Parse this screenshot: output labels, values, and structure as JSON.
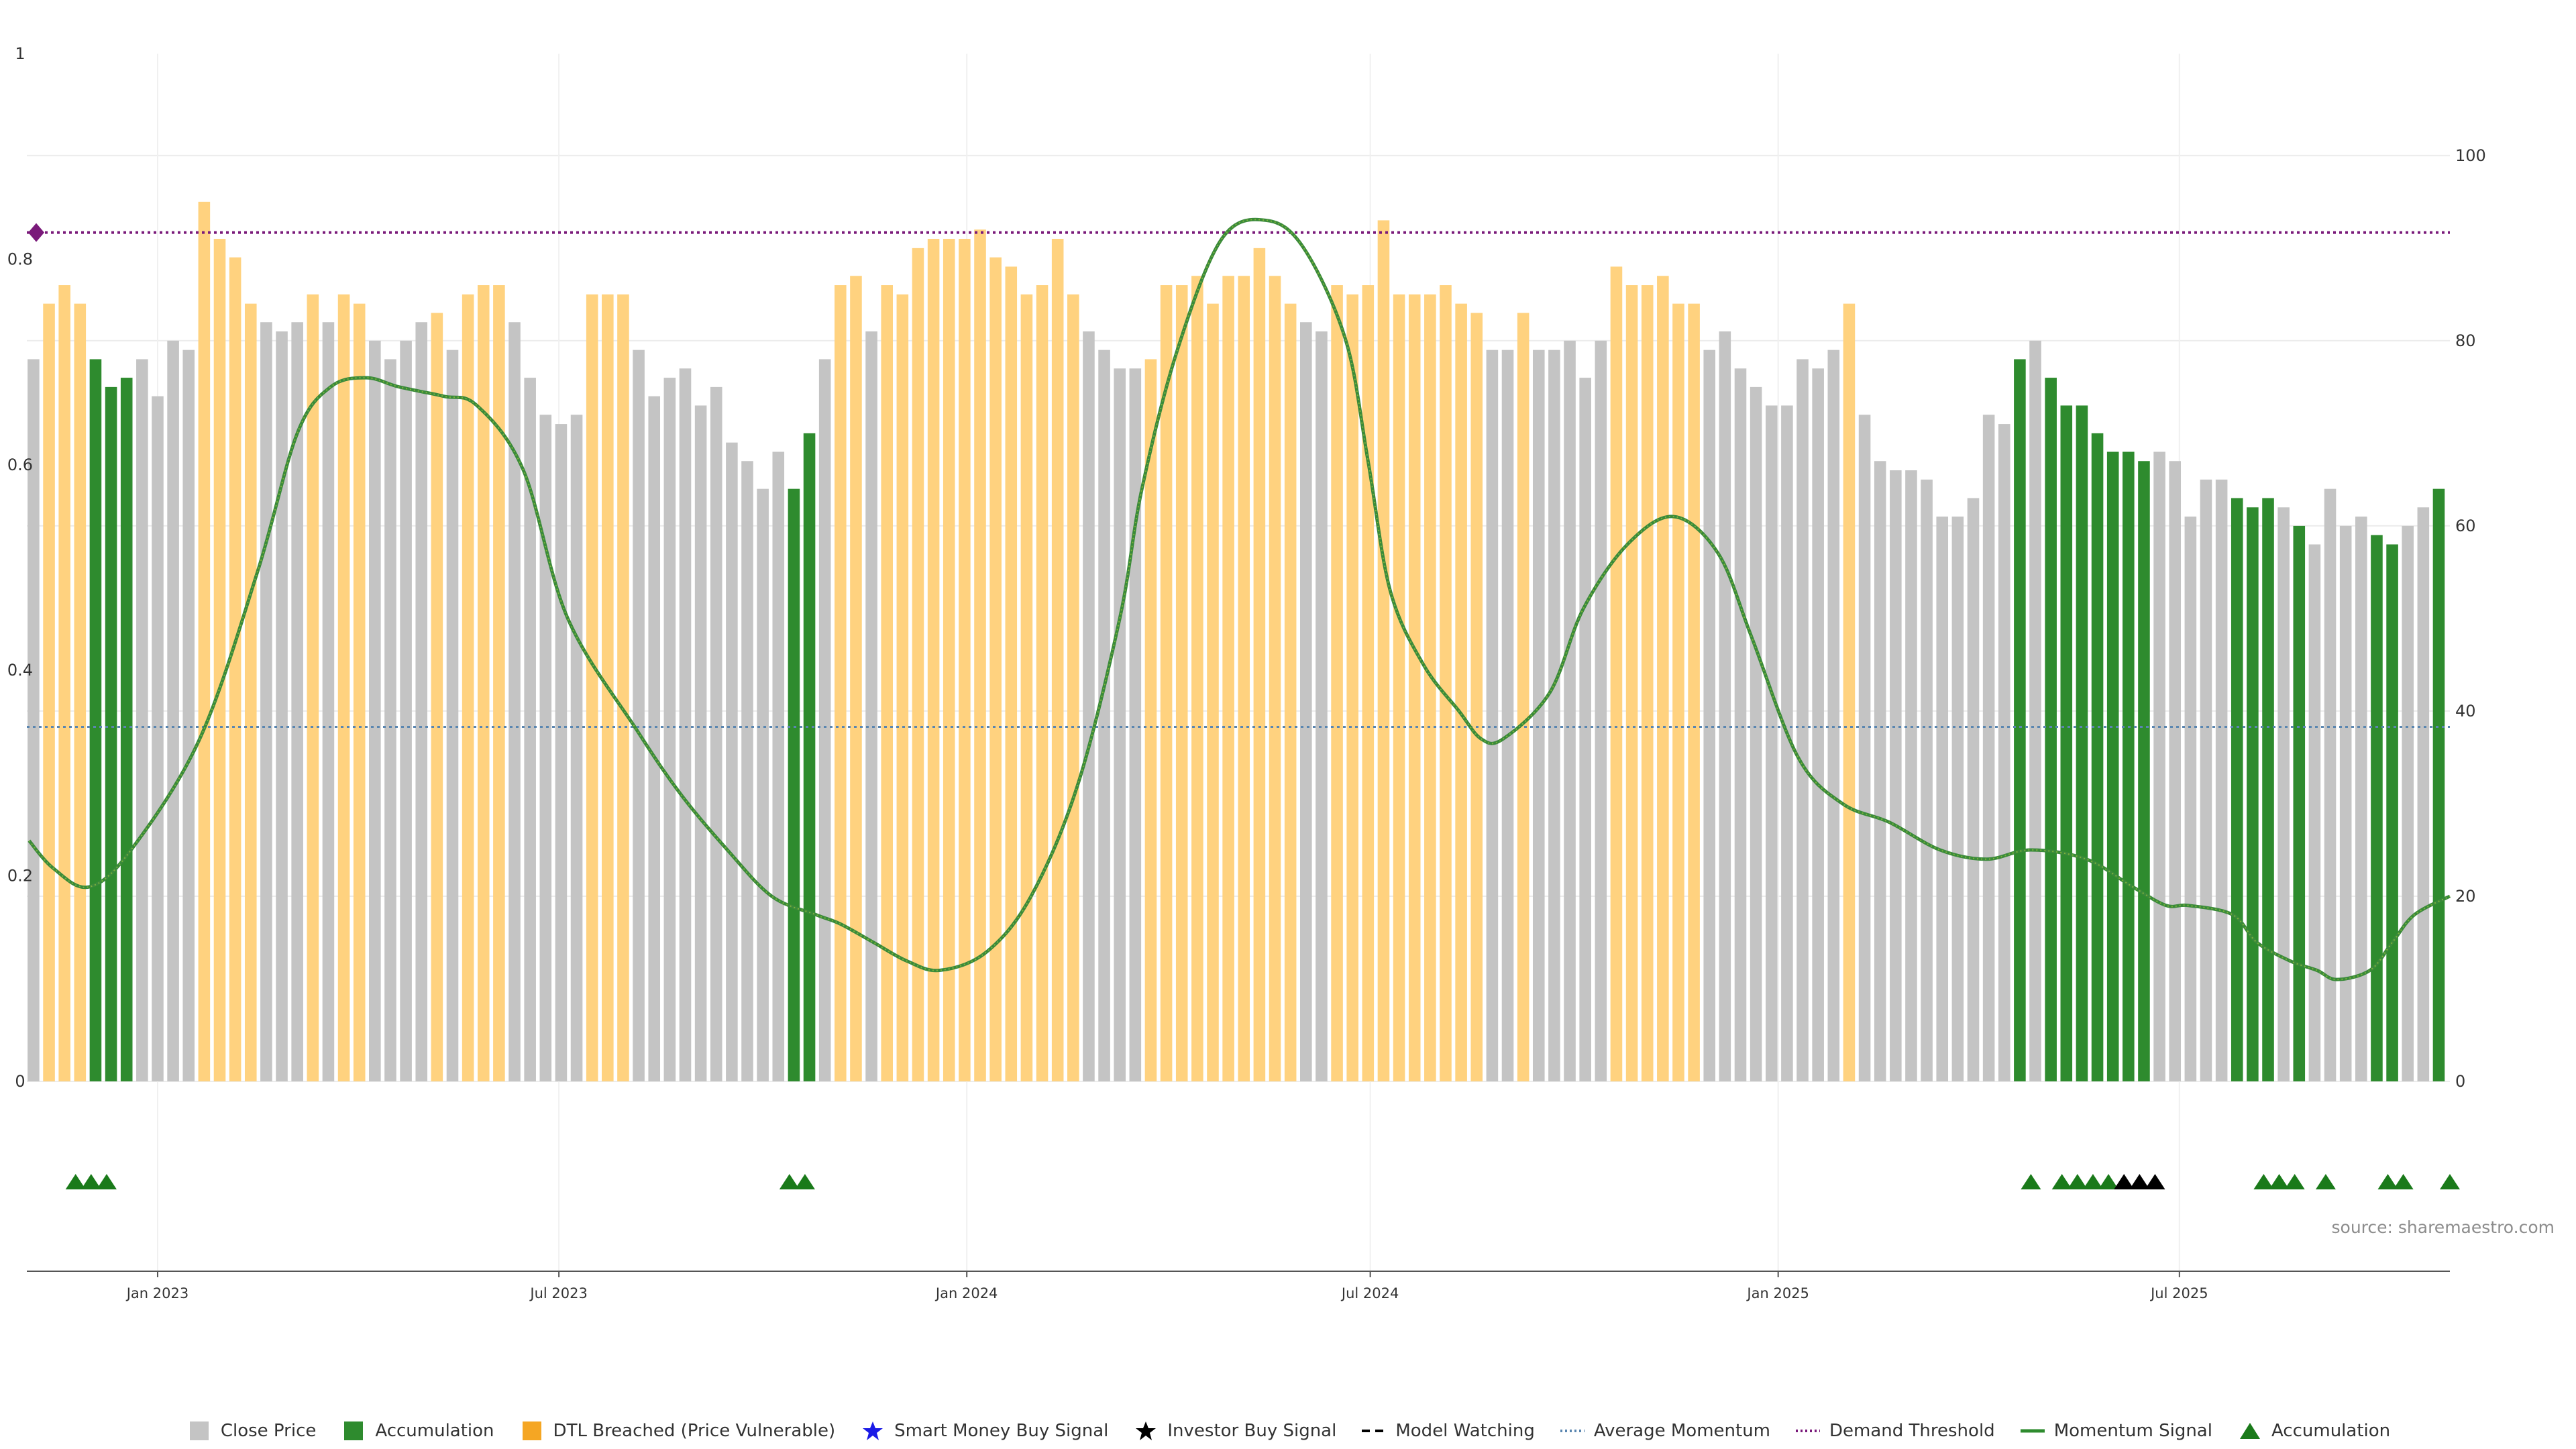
{
  "chart_data": {
    "type": "bar",
    "title": "",
    "xlabel": "",
    "ylabel": "",
    "left_axis": {
      "ylim": [
        0,
        1
      ],
      "ticks": [
        "0",
        "0.2",
        "0.4",
        "0.6",
        "0.8",
        "1"
      ]
    },
    "right_axis": {
      "ylim": [
        0,
        111
      ],
      "ticks": [
        "0",
        "20",
        "40",
        "60",
        "80",
        "100"
      ]
    },
    "x_ticks": [
      "Jan 2023",
      "Jul 2023",
      "Jan 2024",
      "Jul 2024",
      "Jan 2025",
      "Jul 2025"
    ],
    "x_tick_dates": [
      "2023-01-01",
      "2023-07-01",
      "2024-01-01",
      "2024-07-01",
      "2025-01-01",
      "2025-07-01"
    ],
    "x_range": [
      "2022-11-03",
      "2025-10-31"
    ],
    "grid": true,
    "legend_position": "bottom-center",
    "colors": {
      "close": "#c4c4c4",
      "accumulation": "#2e8b2e",
      "dtl": "#ffd27f",
      "momentum": "#3a8a3a",
      "demand_threshold": "#7a1a7a",
      "average_momentum": "#5a86b0",
      "marker_green": "#1a7a1a",
      "marker_black": "#000000",
      "smart_money": "#1a1ae6"
    },
    "demand_threshold": 0.826,
    "average_momentum": 0.345,
    "demand_threshold_marker": "diamond",
    "bar_series": {
      "start_date": "2022-11-06",
      "interval_days": 7,
      "categories": [
        "close",
        "accumulation",
        "dtl"
      ],
      "values": [
        78,
        84,
        86,
        84,
        78,
        75,
        76,
        78,
        74,
        80,
        79,
        95,
        91,
        89,
        84,
        82,
        81,
        82,
        85,
        82,
        85,
        84,
        80,
        78,
        80,
        82,
        83,
        79,
        85,
        86,
        86,
        82,
        76,
        72,
        71,
        72,
        85,
        85,
        85,
        79,
        74,
        76,
        77,
        73,
        75,
        69,
        67,
        64,
        68,
        64,
        70,
        78,
        86,
        87,
        81,
        86,
        85,
        90,
        91,
        91,
        91,
        92,
        89,
        88,
        85,
        86,
        91,
        85,
        81,
        79,
        77,
        77,
        78,
        86,
        86,
        87,
        84,
        87,
        87,
        90,
        87,
        84,
        82,
        81,
        86,
        85,
        86,
        93,
        85,
        85,
        85,
        86,
        84,
        83,
        79,
        79,
        83,
        79,
        79,
        80,
        76,
        80,
        88,
        86,
        86,
        87,
        84,
        84,
        79,
        81,
        77,
        75,
        73,
        73,
        78,
        77,
        79,
        84,
        72,
        67,
        66,
        66,
        65,
        61,
        61,
        63,
        72,
        71,
        78,
        80,
        76,
        73,
        73,
        70,
        68,
        68,
        67,
        68,
        67,
        61,
        65,
        65,
        63,
        62,
        63,
        62,
        60,
        58,
        64,
        60,
        61,
        59,
        58,
        60,
        62,
        64
      ],
      "kinds": [
        "close",
        "dtl",
        "dtl",
        "dtl",
        "acc",
        "acc",
        "acc",
        "close",
        "close",
        "close",
        "close",
        "dtl",
        "dtl",
        "dtl",
        "dtl",
        "close",
        "close",
        "close",
        "dtl",
        "close",
        "dtl",
        "dtl",
        "close",
        "close",
        "close",
        "close",
        "dtl",
        "close",
        "dtl",
        "dtl",
        "dtl",
        "close",
        "close",
        "close",
        "close",
        "close",
        "dtl",
        "dtl",
        "dtl",
        "close",
        "close",
        "close",
        "close",
        "close",
        "close",
        "close",
        "close",
        "close",
        "close",
        "acc",
        "acc",
        "close",
        "dtl",
        "dtl",
        "close",
        "dtl",
        "dtl",
        "dtl",
        "dtl",
        "dtl",
        "dtl",
        "dtl",
        "dtl",
        "dtl",
        "dtl",
        "dtl",
        "dtl",
        "dtl",
        "close",
        "close",
        "close",
        "close",
        "dtl",
        "dtl",
        "dtl",
        "dtl",
        "dtl",
        "dtl",
        "dtl",
        "dtl",
        "dtl",
        "dtl",
        "close",
        "close",
        "dtl",
        "dtl",
        "dtl",
        "dtl",
        "dtl",
        "dtl",
        "dtl",
        "dtl",
        "dtl",
        "dtl",
        "close",
        "close",
        "dtl",
        "close",
        "close",
        "close",
        "close",
        "close",
        "dtl",
        "dtl",
        "dtl",
        "dtl",
        "dtl",
        "dtl",
        "close",
        "close",
        "close",
        "close",
        "close",
        "close",
        "close",
        "close",
        "close",
        "dtl",
        "close",
        "close",
        "close",
        "close",
        "close",
        "close",
        "close",
        "close",
        "close",
        "close",
        "acc",
        "close",
        "acc",
        "acc",
        "acc",
        "acc",
        "acc",
        "acc",
        "acc",
        "close",
        "close",
        "close",
        "close",
        "close",
        "acc",
        "acc",
        "acc",
        "close",
        "acc",
        "close",
        "close",
        "close",
        "close",
        "acc",
        "acc",
        "close",
        "close",
        "acc"
      ]
    },
    "momentum_signal": {
      "dates": [
        "2022-11-04",
        "2022-11-15",
        "2022-12-01",
        "2022-12-20",
        "2023-01-20",
        "2023-02-15",
        "2023-03-05",
        "2023-03-20",
        "2023-04-05",
        "2023-04-20",
        "2023-05-10",
        "2023-05-25",
        "2023-06-15",
        "2023-07-05",
        "2023-08-05",
        "2023-08-25",
        "2023-09-15",
        "2023-10-05",
        "2023-10-25",
        "2023-11-05",
        "2023-11-20",
        "2023-12-05",
        "2023-12-20",
        "2024-01-10",
        "2024-01-30",
        "2024-02-20",
        "2024-03-10",
        "2024-03-20",
        "2024-04-05",
        "2024-04-25",
        "2024-05-15",
        "2024-06-01",
        "2024-06-20",
        "2024-06-30",
        "2024-07-10",
        "2024-07-25",
        "2024-08-10",
        "2024-08-20",
        "2024-08-30",
        "2024-09-20",
        "2024-10-05",
        "2024-10-25",
        "2024-11-15",
        "2024-12-05",
        "2024-12-20",
        "2025-01-10",
        "2025-01-30",
        "2025-02-20",
        "2025-03-15",
        "2025-04-05",
        "2025-04-25",
        "2025-05-20",
        "2025-06-10",
        "2025-06-25",
        "2025-07-05",
        "2025-07-25",
        "2025-08-05",
        "2025-08-20",
        "2025-09-01",
        "2025-09-10",
        "2025-09-25",
        "2025-10-05",
        "2025-10-15",
        "2025-10-31"
      ],
      "values": [
        26,
        23,
        21,
        25,
        37,
        55,
        70,
        75,
        76,
        75,
        74,
        73,
        66,
        50,
        38,
        31,
        25,
        20,
        18,
        17,
        15,
        13,
        12,
        14,
        20,
        32,
        50,
        64,
        79,
        91,
        93,
        90,
        80,
        67,
        53,
        45,
        40,
        37,
        37,
        42,
        51,
        58,
        61,
        57,
        48,
        35,
        30,
        28,
        25,
        24,
        25,
        24,
        21,
        19,
        19,
        18,
        15,
        13,
        12,
        11,
        12,
        15,
        18,
        20
      ]
    },
    "markers": [
      {
        "date": "2022-11-25",
        "color": "green"
      },
      {
        "date": "2022-12-02",
        "color": "green"
      },
      {
        "date": "2022-12-09",
        "color": "green"
      },
      {
        "date": "2023-10-13",
        "color": "green"
      },
      {
        "date": "2023-10-20",
        "color": "green"
      },
      {
        "date": "2025-04-25",
        "color": "green"
      },
      {
        "date": "2025-05-09",
        "color": "green"
      },
      {
        "date": "2025-05-16",
        "color": "green"
      },
      {
        "date": "2025-05-23",
        "color": "green"
      },
      {
        "date": "2025-05-30",
        "color": "green"
      },
      {
        "date": "2025-06-06",
        "color": "black"
      },
      {
        "date": "2025-06-13",
        "color": "black"
      },
      {
        "date": "2025-06-20",
        "color": "black"
      },
      {
        "date": "2025-08-08",
        "color": "green"
      },
      {
        "date": "2025-08-15",
        "color": "green"
      },
      {
        "date": "2025-08-22",
        "color": "green"
      },
      {
        "date": "2025-09-05",
        "color": "green"
      },
      {
        "date": "2025-10-03",
        "color": "green"
      },
      {
        "date": "2025-10-10",
        "color": "green"
      },
      {
        "date": "2025-10-31",
        "color": "green"
      }
    ],
    "source_text": "source: sharemaestro.com"
  },
  "legend": {
    "close_price": "Close Price",
    "accumulation": "Accumulation",
    "dtl": "DTL Breached (Price Vulnerable)",
    "smart_money": "Smart Money Buy Signal",
    "investor_buy": "Investor Buy Signal",
    "model_watching": "Model Watching",
    "average_momentum": "Average Momentum",
    "demand_threshold": "Demand Threshold",
    "momentum_signal": "Momentum Signal",
    "accumulation_marker": "Accumulation"
  }
}
